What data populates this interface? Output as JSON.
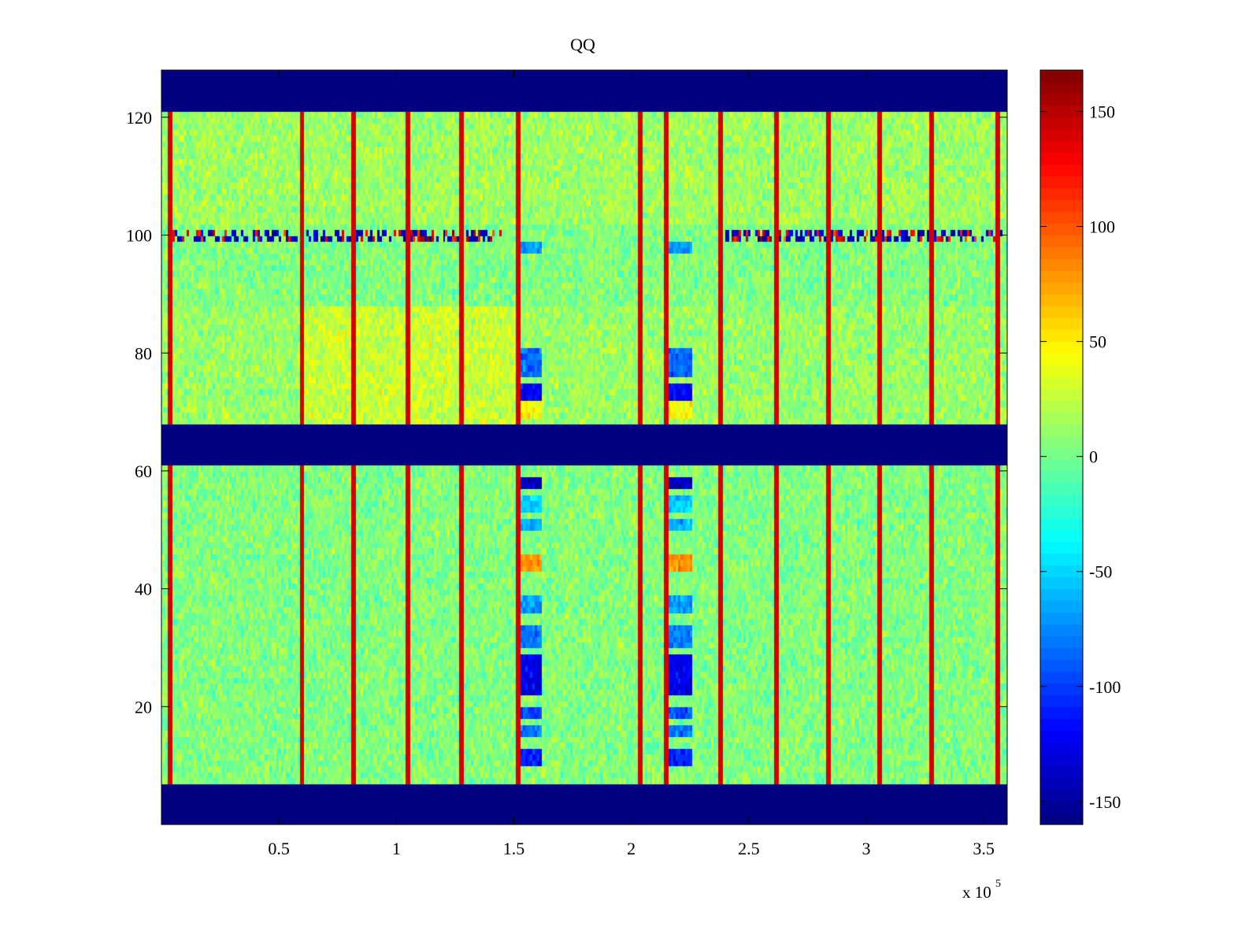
{
  "chart_data": {
    "type": "heatmap",
    "title": "QQ",
    "xlabel": "",
    "ylabel": "",
    "x_exponent_label": "x 10",
    "x_exponent_power": "5",
    "xlim": [
      0,
      360000
    ],
    "ylim": [
      0,
      128
    ],
    "x_ticks": [
      {
        "value": 50000,
        "label": "0.5"
      },
      {
        "value": 100000,
        "label": "1"
      },
      {
        "value": 150000,
        "label": "1.5"
      },
      {
        "value": 200000,
        "label": "2"
      },
      {
        "value": 250000,
        "label": "2.5"
      },
      {
        "value": 300000,
        "label": "3"
      },
      {
        "value": 350000,
        "label": "3.5"
      }
    ],
    "y_ticks": [
      {
        "value": 20,
        "label": "20"
      },
      {
        "value": 40,
        "label": "40"
      },
      {
        "value": 60,
        "label": "60"
      },
      {
        "value": 80,
        "label": "80"
      },
      {
        "value": 100,
        "label": "100"
      },
      {
        "value": 120,
        "label": "120"
      }
    ],
    "colorbar": {
      "colormap": "jet",
      "range": [
        -160,
        168
      ],
      "ticks": [
        {
          "value": 150,
          "label": "150"
        },
        {
          "value": 100,
          "label": "100"
        },
        {
          "value": 50,
          "label": "50"
        },
        {
          "value": 0,
          "label": "0"
        },
        {
          "value": -50,
          "label": "-50"
        },
        {
          "value": -100,
          "label": "-100"
        },
        {
          "value": -150,
          "label": "-150"
        }
      ]
    },
    "masked_row_bands": [
      [
        0,
        7
      ],
      [
        61,
        68
      ],
      [
        121,
        128
      ]
    ],
    "mask_value": -160,
    "background_mean_by_rows": [
      {
        "rows": [
          7,
          61
        ],
        "mean": 5
      },
      {
        "rows": [
          68,
          88
        ],
        "mean": 12
      },
      {
        "rows": [
          88,
          102
        ],
        "mean": 5
      },
      {
        "rows": [
          102,
          121
        ],
        "mean": 14
      }
    ],
    "warm_region": {
      "x": [
        60000,
        152000
      ],
      "rows": [
        68,
        88
      ],
      "mean": 28
    },
    "vertical_stripe_x": [
      4000,
      60000,
      82000,
      105000,
      128000,
      152000,
      204000,
      215000,
      238000,
      262000,
      284000,
      306000,
      328000,
      356000
    ],
    "stripe_value": 140,
    "noisy_row": {
      "row": 100,
      "x_ranges": [
        [
          5000,
          145000
        ],
        [
          240000,
          358000
        ]
      ],
      "values": "alternating -150 to 150"
    },
    "anomaly_columns": [
      {
        "x": [
          153000,
          162000
        ]
      },
      {
        "x": [
          216000,
          226000
        ]
      }
    ],
    "anomaly_features": [
      {
        "rows": [
          10,
          13
        ],
        "value": -110
      },
      {
        "rows": [
          15,
          17
        ],
        "value": -80
      },
      {
        "rows": [
          18,
          20
        ],
        "value": -95
      },
      {
        "rows": [
          22,
          29
        ],
        "value": -125
      },
      {
        "rows": [
          30,
          34
        ],
        "value": -80
      },
      {
        "rows": [
          36,
          39
        ],
        "value": -70
      },
      {
        "rows": [
          43,
          46
        ],
        "value": 80
      },
      {
        "rows": [
          50,
          52
        ],
        "value": -60
      },
      {
        "rows": [
          53,
          56
        ],
        "value": -50
      },
      {
        "rows": [
          57,
          59
        ],
        "value": -140
      },
      {
        "rows": [
          69,
          72
        ],
        "value": 45
      },
      {
        "rows": [
          72,
          75
        ],
        "value": -120
      },
      {
        "rows": [
          76,
          81
        ],
        "value": -85
      },
      {
        "rows": [
          97,
          99
        ],
        "value": -70
      }
    ]
  }
}
